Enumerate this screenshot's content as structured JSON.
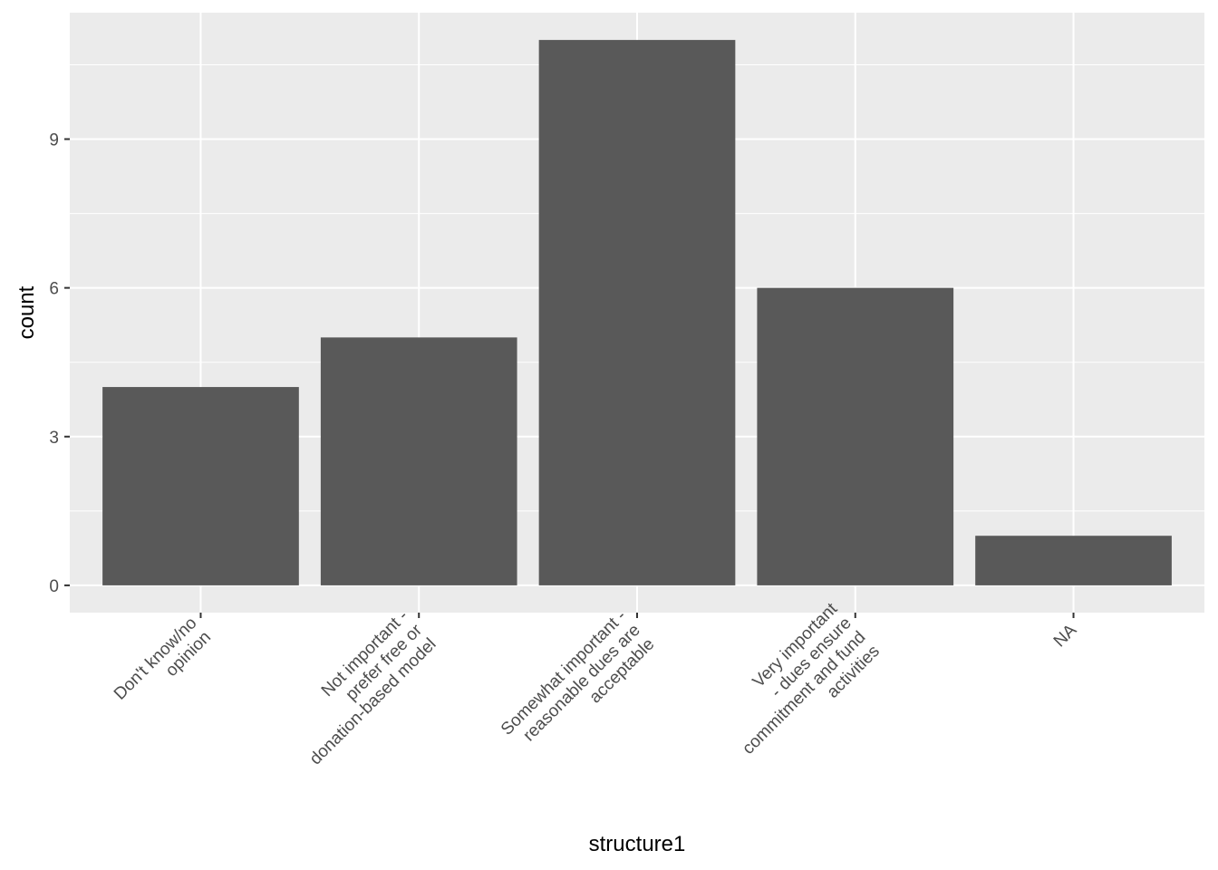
{
  "chart_data": {
    "type": "bar",
    "title": "",
    "xlabel": "structure1",
    "ylabel": "count",
    "categories": [
      [
        "Don't know/no",
        "opinion"
      ],
      [
        "Not important -",
        "prefer free or",
        "donation-based model"
      ],
      [
        "Somewhat important -",
        "reasonable dues are",
        "acceptable"
      ],
      [
        "Very important",
        "- dues ensure",
        "commitment and fund",
        "activities"
      ],
      [
        "NA"
      ]
    ],
    "values": [
      4,
      5,
      11,
      6,
      1
    ],
    "ylim": [
      -0.55,
      11.55
    ],
    "yticks": [
      0,
      3,
      6,
      9
    ],
    "grid": true,
    "legend": "none",
    "colors": {
      "panel": "#EBEBEB",
      "grid_major": "#FFFFFF",
      "bar": "#595959",
      "tick_text": "#4D4D4D",
      "tick_mark": "#333333",
      "axis_title": "#000000"
    }
  }
}
